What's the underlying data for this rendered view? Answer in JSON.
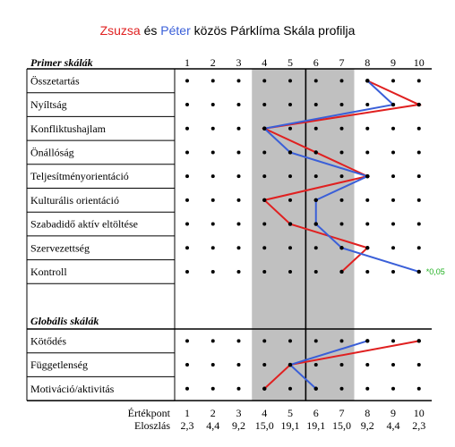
{
  "title": {
    "name_a": "Zsuzsa",
    "and": "és",
    "name_b": "Péter",
    "rest": "közös Párklíma Skála profilja"
  },
  "colors": {
    "name_a": "#e02020",
    "name_b": "#3a5fd8",
    "band": "#c0c0c0",
    "note": "#20b020"
  },
  "chart_data": {
    "type": "line",
    "x_scale": [
      1,
      2,
      3,
      4,
      5,
      6,
      7,
      8,
      9,
      10
    ],
    "primary_header": "Primer skálák",
    "global_header": "Globális skálák",
    "primary_scales": [
      "Összetartás",
      "Nyíltság",
      "Konfliktushajlam",
      "Önállóság",
      "Teljesítményorientáció",
      "Kulturális orientáció",
      "Szabadidő aktív eltöltése",
      "Szervezettség",
      "Kontroll"
    ],
    "global_scales": [
      "Kötődés",
      "Függetlenség",
      "Motiváció/aktivitás"
    ],
    "shaded_band": [
      4,
      7
    ],
    "center_line": 6,
    "series": [
      {
        "name": "Zsuzsa",
        "color": "#e02020",
        "primary": [
          8,
          10,
          4,
          6,
          8,
          4,
          5,
          8,
          7
        ],
        "global": [
          10,
          5,
          4
        ]
      },
      {
        "name": "Péter",
        "color": "#3a5fd8",
        "primary": [
          8,
          9,
          4,
          5,
          8,
          6,
          6,
          7,
          10
        ],
        "global": [
          8,
          5,
          6
        ]
      }
    ],
    "annotation": {
      "text": "*0,05",
      "scale": "Kontroll"
    },
    "footer": {
      "ertekpont_label": "Értékpont",
      "ertekpont": [
        "1",
        "2",
        "3",
        "4",
        "5",
        "6",
        "7",
        "8",
        "9",
        "10"
      ],
      "eloszlas_label": "Eloszlás",
      "eloszlas": [
        "2,3",
        "4,4",
        "9,2",
        "15,0",
        "19,1",
        "19,1",
        "15,0",
        "9,2",
        "4,4",
        "2,3"
      ]
    }
  }
}
